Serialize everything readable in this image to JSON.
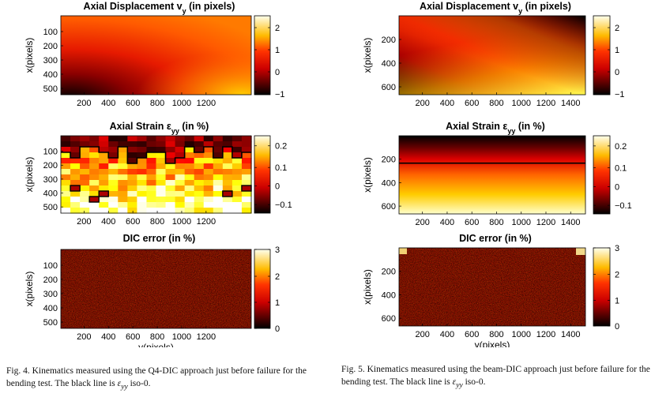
{
  "figure_left": {
    "panels": [
      {
        "title_main": "Axial Displacement v",
        "title_sub": "y",
        "title_tail": " (in pixels)",
        "ylabel": "x(pixels)",
        "xlabel": "",
        "y_ticks": [
          "100",
          "200",
          "300",
          "400",
          "500"
        ],
        "x_ticks": [
          "200",
          "400",
          "600",
          "800",
          "1000",
          "1200"
        ],
        "cbar_ticks": [
          "2",
          "1",
          "0",
          "−1"
        ],
        "cmap": "hot"
      },
      {
        "title_main": "Axial Strain ε",
        "title_sub": "yy",
        "title_tail": " (in %)",
        "ylabel": "x(pixels)",
        "xlabel": "",
        "y_ticks": [
          "100",
          "200",
          "300",
          "400",
          "500"
        ],
        "x_ticks": [
          "200",
          "400",
          "600",
          "800",
          "1000",
          "1200"
        ],
        "cbar_ticks": [
          "0.2",
          "0.1",
          "0",
          "−0.1"
        ],
        "cmap": "hot"
      },
      {
        "title_main": "DIC error (in %)",
        "title_sub": "",
        "title_tail": "",
        "ylabel": "x(pixels)",
        "xlabel": "y(pixels)",
        "y_ticks": [
          "100",
          "200",
          "300",
          "400",
          "500"
        ],
        "x_ticks": [
          "200",
          "400",
          "600",
          "800",
          "1000",
          "1200"
        ],
        "cbar_ticks": [
          "3",
          "2",
          "1",
          "0"
        ],
        "cmap": "hot"
      }
    ],
    "caption_label": "Fig. 4.",
    "caption_text": "Kinematics measured using the Q4-DIC approach just before failure for the bending test. The black line is",
    "caption_sym": "ε",
    "caption_sub": "yy",
    "caption_end": "iso-0."
  },
  "figure_right": {
    "panels": [
      {
        "title_main": "Axial Displacement v",
        "title_sub": "y",
        "title_tail": " (in pixels)",
        "ylabel": "x(pixels)",
        "xlabel": "",
        "y_ticks": [
          "200",
          "400",
          "600"
        ],
        "x_ticks": [
          "200",
          "400",
          "600",
          "800",
          "1000",
          "1200",
          "1400"
        ],
        "cbar_ticks": [
          "2",
          "1",
          "0",
          "−1"
        ],
        "cmap": "hot"
      },
      {
        "title_main": "Axial Strain ε",
        "title_sub": "yy",
        "title_tail": " (in %)",
        "ylabel": "x(pixels)",
        "xlabel": "",
        "y_ticks": [
          "200",
          "400",
          "600"
        ],
        "x_ticks": [
          "200",
          "400",
          "600",
          "800",
          "1000",
          "1200",
          "1400"
        ],
        "cbar_ticks": [
          "0.2",
          "0.1",
          "0",
          "−0.1"
        ],
        "cmap": "hot"
      },
      {
        "title_main": "DIC error (in %)",
        "title_sub": "",
        "title_tail": "",
        "ylabel": "x(pixels)",
        "xlabel": "y(pixels)",
        "y_ticks": [
          "200",
          "400",
          "600"
        ],
        "x_ticks": [
          "200",
          "400",
          "600",
          "800",
          "1000",
          "1200",
          "1400"
        ],
        "cbar_ticks": [
          "3",
          "2",
          "1",
          "0"
        ],
        "cmap": "hot"
      }
    ],
    "caption_label": "Fig. 5.",
    "caption_text": "Kinematics measured using the beam-DIC approach just before failure for the bending test. The black line is",
    "caption_sym": "ε",
    "caption_sub": "yy",
    "caption_end": "iso-0."
  }
}
